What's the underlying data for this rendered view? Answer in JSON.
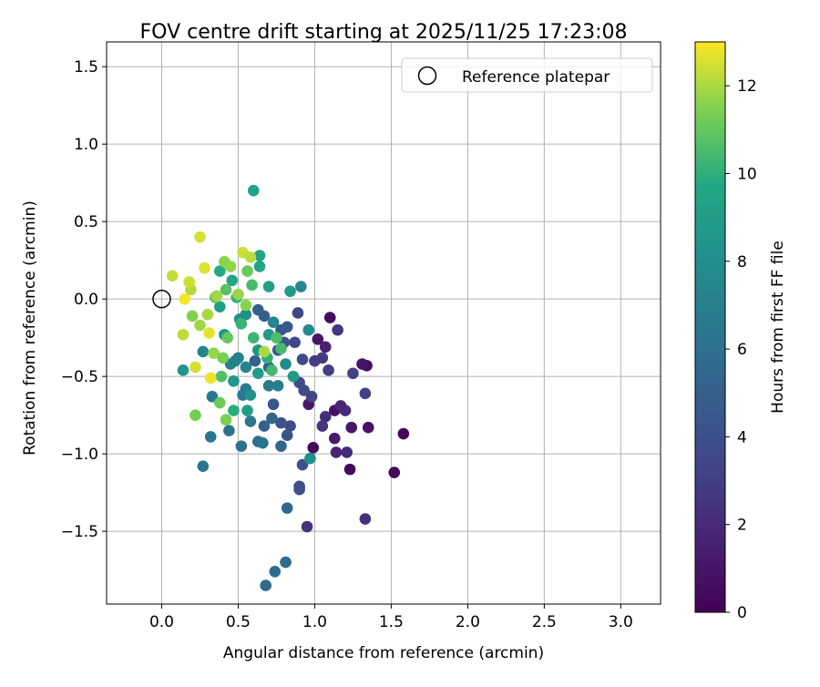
{
  "chart_data": {
    "type": "scatter",
    "title": "FOV centre drift starting at 2025/11/25 17:23:08",
    "xlabel": "Angular distance from reference (arcmin)",
    "ylabel": "Rotation from reference (arcmin)",
    "xlim": [
      -0.36,
      3.26
    ],
    "ylim": [
      -1.97,
      1.66
    ],
    "xticks": [
      0.0,
      0.5,
      1.0,
      1.5,
      2.0,
      2.5,
      3.0
    ],
    "xtick_labels": [
      "0.0",
      "0.5",
      "1.0",
      "1.5",
      "2.0",
      "2.5",
      "3.0"
    ],
    "yticks": [
      -1.5,
      -1.0,
      -0.5,
      0.0,
      0.5,
      1.0,
      1.5
    ],
    "ytick_labels": [
      "−1.5",
      "−1.0",
      "−0.5",
      "0.0",
      "0.5",
      "1.0",
      "1.5"
    ],
    "grid": true,
    "legend": {
      "position": "top-right",
      "entries": [
        "Reference platepar"
      ]
    },
    "colormap": "viridis",
    "colorbar": {
      "label": "Hours from first FF file",
      "range": [
        0,
        13
      ],
      "ticks": [
        0,
        2,
        4,
        6,
        8,
        10,
        12
      ],
      "tick_labels": [
        "0",
        "2",
        "4",
        "6",
        "8",
        "10",
        "12"
      ]
    },
    "reference_point": {
      "x": 0.0,
      "y": 0.0
    },
    "points": [
      {
        "x": 1.1,
        "y": -0.12,
        "c": 0.5
      },
      {
        "x": 1.58,
        "y": -0.87,
        "c": 0.2
      },
      {
        "x": 1.52,
        "y": -1.12,
        "c": 0.3
      },
      {
        "x": 1.35,
        "y": -0.83,
        "c": 0.8
      },
      {
        "x": 1.23,
        "y": -1.1,
        "c": 0.4
      },
      {
        "x": 1.34,
        "y": -0.43,
        "c": 0.6
      },
      {
        "x": 1.31,
        "y": -0.42,
        "c": 0.9
      },
      {
        "x": 1.24,
        "y": -0.83,
        "c": 1.0
      },
      {
        "x": 1.13,
        "y": -0.72,
        "c": 0.7
      },
      {
        "x": 0.99,
        "y": -0.96,
        "c": 0.3
      },
      {
        "x": 1.13,
        "y": -0.9,
        "c": 1.2
      },
      {
        "x": 0.96,
        "y": -0.68,
        "c": 1.1
      },
      {
        "x": 1.02,
        "y": -0.26,
        "c": 1.0
      },
      {
        "x": 1.07,
        "y": -0.31,
        "c": 1.5
      },
      {
        "x": 1.14,
        "y": -0.99,
        "c": 1.7
      },
      {
        "x": 1.21,
        "y": -0.99,
        "c": 2.0
      },
      {
        "x": 1.2,
        "y": -0.72,
        "c": 2.1
      },
      {
        "x": 1.17,
        "y": -0.69,
        "c": 1.9
      },
      {
        "x": 1.33,
        "y": -1.42,
        "c": 2.3
      },
      {
        "x": 0.95,
        "y": -1.47,
        "c": 2.4
      },
      {
        "x": 1.07,
        "y": -0.76,
        "c": 2.2
      },
      {
        "x": 1.05,
        "y": -0.82,
        "c": 2.5
      },
      {
        "x": 1.15,
        "y": -0.2,
        "c": 2.6
      },
      {
        "x": 1.05,
        "y": -0.38,
        "c": 2.8
      },
      {
        "x": 1.0,
        "y": -0.4,
        "c": 2.9
      },
      {
        "x": 1.09,
        "y": -0.46,
        "c": 3.0
      },
      {
        "x": 1.25,
        "y": -0.48,
        "c": 3.1
      },
      {
        "x": 1.33,
        "y": -0.61,
        "c": 3.2
      },
      {
        "x": 0.98,
        "y": -0.63,
        "c": 3.3
      },
      {
        "x": 0.89,
        "y": -0.09,
        "c": 3.4
      },
      {
        "x": 0.87,
        "y": -0.28,
        "c": 3.5
      },
      {
        "x": 0.92,
        "y": -0.39,
        "c": 3.5
      },
      {
        "x": 0.93,
        "y": -0.59,
        "c": 3.6
      },
      {
        "x": 0.9,
        "y": -0.54,
        "c": 3.7
      },
      {
        "x": 0.84,
        "y": -0.82,
        "c": 3.8
      },
      {
        "x": 0.9,
        "y": -1.21,
        "c": 3.9
      },
      {
        "x": 0.9,
        "y": -1.23,
        "c": 4.0
      },
      {
        "x": 0.92,
        "y": -1.07,
        "c": 4.1
      },
      {
        "x": 0.82,
        "y": -0.88,
        "c": 4.2
      },
      {
        "x": 0.78,
        "y": -0.8,
        "c": 4.1
      },
      {
        "x": 0.73,
        "y": -0.68,
        "c": 4.3
      },
      {
        "x": 0.8,
        "y": -0.28,
        "c": 4.4
      },
      {
        "x": 0.78,
        "y": -0.2,
        "c": 4.5
      },
      {
        "x": 0.82,
        "y": -0.18,
        "c": 4.6
      },
      {
        "x": 0.76,
        "y": -0.33,
        "c": 4.7
      },
      {
        "x": 0.7,
        "y": -0.44,
        "c": 4.8
      },
      {
        "x": 0.67,
        "y": -0.11,
        "c": 4.9
      },
      {
        "x": 0.63,
        "y": -0.07,
        "c": 5.0
      },
      {
        "x": 0.61,
        "y": -0.4,
        "c": 5.1
      },
      {
        "x": 0.67,
        "y": -0.82,
        "c": 5.2
      },
      {
        "x": 0.72,
        "y": -0.77,
        "c": 5.3
      },
      {
        "x": 0.78,
        "y": -0.95,
        "c": 5.4
      },
      {
        "x": 0.82,
        "y": -1.35,
        "c": 5.5
      },
      {
        "x": 0.74,
        "y": -1.76,
        "c": 5.6
      },
      {
        "x": 0.68,
        "y": -1.85,
        "c": 5.7
      },
      {
        "x": 0.81,
        "y": -1.7,
        "c": 5.8
      },
      {
        "x": 0.52,
        "y": -0.95,
        "c": 5.9
      },
      {
        "x": 0.63,
        "y": -0.92,
        "c": 6.0
      },
      {
        "x": 0.66,
        "y": -0.93,
        "c": 6.1
      },
      {
        "x": 0.44,
        "y": -0.85,
        "c": 6.2
      },
      {
        "x": 0.32,
        "y": -0.89,
        "c": 6.3
      },
      {
        "x": 0.27,
        "y": -1.08,
        "c": 6.4
      },
      {
        "x": 0.33,
        "y": -0.63,
        "c": 6.5
      },
      {
        "x": 0.58,
        "y": -0.79,
        "c": 6.6
      },
      {
        "x": 0.53,
        "y": -0.62,
        "c": 6.5
      },
      {
        "x": 0.55,
        "y": -0.58,
        "c": 6.7
      },
      {
        "x": 0.7,
        "y": -0.56,
        "c": 6.8
      },
      {
        "x": 0.76,
        "y": -0.56,
        "c": 6.9
      },
      {
        "x": 0.45,
        "y": -0.42,
        "c": 7.0
      },
      {
        "x": 0.48,
        "y": -0.4,
        "c": 7.1
      },
      {
        "x": 0.5,
        "y": -0.38,
        "c": 7.2
      },
      {
        "x": 0.55,
        "y": -0.44,
        "c": 7.3
      },
      {
        "x": 0.27,
        "y": -0.34,
        "c": 7.4
      },
      {
        "x": 0.73,
        "y": -0.15,
        "c": 7.4
      },
      {
        "x": 0.91,
        "y": 0.08,
        "c": 7.5
      },
      {
        "x": 0.96,
        "y": -0.2,
        "c": 7.6
      },
      {
        "x": 0.81,
        "y": -0.42,
        "c": 7.8
      },
      {
        "x": 0.51,
        "y": -0.13,
        "c": 7.9
      },
      {
        "x": 0.55,
        "y": -0.1,
        "c": 8.0
      },
      {
        "x": 0.97,
        "y": -1.03,
        "c": 8.1
      },
      {
        "x": 0.58,
        "y": -0.62,
        "c": 8.2
      },
      {
        "x": 0.63,
        "y": -0.33,
        "c": 8.3
      },
      {
        "x": 0.14,
        "y": -0.46,
        "c": 8.4
      },
      {
        "x": 0.47,
        "y": -0.53,
        "c": 8.5
      },
      {
        "x": 0.41,
        "y": -0.23,
        "c": 8.6
      },
      {
        "x": 0.7,
        "y": -0.23,
        "c": 8.7
      },
      {
        "x": 0.84,
        "y": 0.05,
        "c": 8.8
      },
      {
        "x": 0.86,
        "y": -0.5,
        "c": 8.9
      },
      {
        "x": 0.63,
        "y": -0.48,
        "c": 9.0
      },
      {
        "x": 0.56,
        "y": -0.72,
        "c": 9.1
      },
      {
        "x": 0.38,
        "y": -0.05,
        "c": 9.2
      },
      {
        "x": 0.7,
        "y": 0.08,
        "c": 9.3
      },
      {
        "x": 0.6,
        "y": 0.7,
        "c": 9.4
      },
      {
        "x": 0.64,
        "y": 0.28,
        "c": 9.5
      },
      {
        "x": 0.64,
        "y": 0.21,
        "c": 9.6
      },
      {
        "x": 0.46,
        "y": 0.12,
        "c": 9.7
      },
      {
        "x": 0.38,
        "y": 0.18,
        "c": 9.8
      },
      {
        "x": 0.47,
        "y": -0.72,
        "c": 9.9
      },
      {
        "x": 0.69,
        "y": -0.38,
        "c": 10.0
      },
      {
        "x": 0.49,
        "y": 0.01,
        "c": 10.1
      },
      {
        "x": 0.52,
        "y": -0.16,
        "c": 10.2
      },
      {
        "x": 0.6,
        "y": -0.25,
        "c": 10.3
      },
      {
        "x": 0.72,
        "y": -0.46,
        "c": 10.4
      },
      {
        "x": 0.59,
        "y": 0.09,
        "c": 10.5
      },
      {
        "x": 0.75,
        "y": -0.25,
        "c": 10.6
      },
      {
        "x": 0.78,
        "y": -0.32,
        "c": 10.5
      },
      {
        "x": 0.39,
        "y": -0.5,
        "c": 10.7
      },
      {
        "x": 0.42,
        "y": 0.06,
        "c": 10.8
      },
      {
        "x": 0.35,
        "y": 0.01,
        "c": 10.9
      },
      {
        "x": 0.43,
        "y": -0.25,
        "c": 11.0
      },
      {
        "x": 0.56,
        "y": 0.18,
        "c": 11.1
      },
      {
        "x": 0.38,
        "y": -0.67,
        "c": 11.2
      },
      {
        "x": 0.22,
        "y": -0.75,
        "c": 11.3
      },
      {
        "x": 0.42,
        "y": -0.78,
        "c": 11.4
      },
      {
        "x": 0.2,
        "y": -0.11,
        "c": 11.5
      },
      {
        "x": 0.41,
        "y": 0.24,
        "c": 11.6
      },
      {
        "x": 0.45,
        "y": 0.21,
        "c": 11.7
      },
      {
        "x": 0.34,
        "y": -0.35,
        "c": 11.8
      },
      {
        "x": 0.25,
        "y": -0.17,
        "c": 11.9
      },
      {
        "x": 0.3,
        "y": -0.1,
        "c": 12.0
      },
      {
        "x": 0.19,
        "y": 0.06,
        "c": 12.1
      },
      {
        "x": 0.14,
        "y": -0.23,
        "c": 12.2
      },
      {
        "x": 0.07,
        "y": 0.15,
        "c": 12.3
      },
      {
        "x": 0.18,
        "y": 0.11,
        "c": 12.4
      },
      {
        "x": 0.25,
        "y": 0.4,
        "c": 12.5
      },
      {
        "x": 0.28,
        "y": 0.2,
        "c": 12.6
      },
      {
        "x": 0.31,
        "y": -0.22,
        "c": 12.7
      },
      {
        "x": 0.22,
        "y": -0.44,
        "c": 12.5
      },
      {
        "x": 0.32,
        "y": -0.51,
        "c": 12.8
      },
      {
        "x": 0.15,
        "y": 0.0,
        "c": 12.9
      },
      {
        "x": 0.53,
        "y": 0.3,
        "c": 12.4
      },
      {
        "x": 0.58,
        "y": 0.27,
        "c": 12.2
      },
      {
        "x": 0.67,
        "y": -0.34,
        "c": 12.0
      },
      {
        "x": 0.36,
        "y": 0.02,
        "c": 11.9
      },
      {
        "x": 0.5,
        "y": 0.03,
        "c": 11.8
      },
      {
        "x": 0.55,
        "y": -0.04,
        "c": 11.6
      },
      {
        "x": 0.4,
        "y": -0.38,
        "c": 11.4
      }
    ]
  }
}
